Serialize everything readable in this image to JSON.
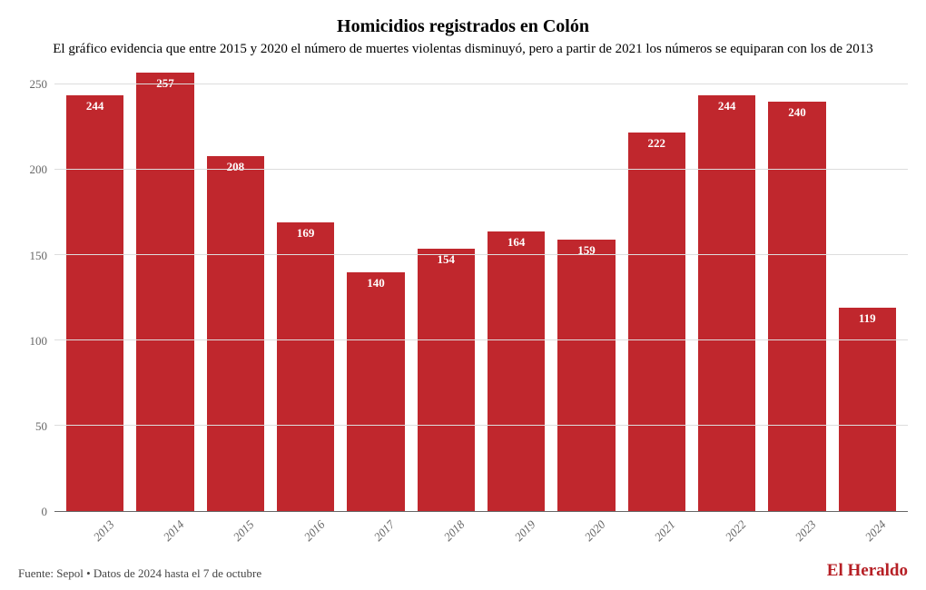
{
  "title": "Homicidios registrados en Colón",
  "title_fontsize": 20,
  "subtitle": "El gráfico evidencia que entre 2015 y 2020 el número de muertes violentas disminuyó, pero a partir de 2021 los números se equiparan con los de 2013",
  "subtitle_fontsize": 15,
  "source": "Fuente: Sepol • Datos de 2024 hasta el 7 de octubre",
  "source_fontsize": 13,
  "brand": "El Heraldo",
  "brand_color": "#b61f25",
  "brand_fontsize": 19,
  "chart": {
    "type": "bar",
    "categories": [
      "2013",
      "2014",
      "2015",
      "2016",
      "2017",
      "2018",
      "2019",
      "2020",
      "2021",
      "2022",
      "2023",
      "2024"
    ],
    "values": [
      244,
      257,
      208,
      169,
      140,
      154,
      164,
      159,
      222,
      244,
      240,
      119
    ],
    "bar_color": "#c0272d",
    "bar_width_pct": 82,
    "value_label_color": "#ffffff",
    "value_label_fontsize": 13,
    "background_color": "#ffffff",
    "grid_color": "#dddddd",
    "axis_text_color": "#666666",
    "ylim": [
      0,
      260
    ],
    "yticks": [
      0,
      50,
      100,
      150,
      200,
      250
    ],
    "ytick_fontsize": 13,
    "xtick_fontsize": 13,
    "xtick_rotation": -45
  }
}
